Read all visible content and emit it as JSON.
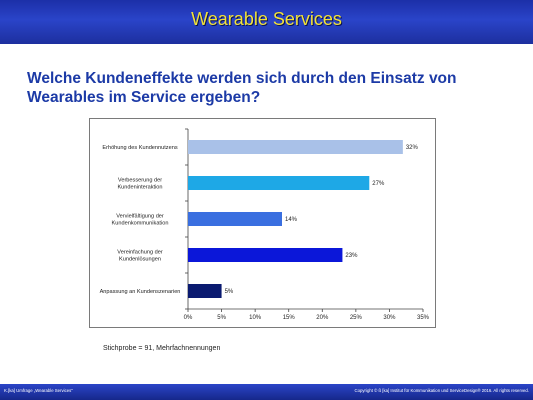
{
  "header": {
    "title": "Wearable Services"
  },
  "heading": "Welche Kundeneffekte werden sich durch den Einsatz von Wearables im Service ergeben?",
  "chart_data": {
    "type": "bar",
    "orientation": "horizontal",
    "categories": [
      [
        "Erhöhung des Kundennutzens"
      ],
      [
        "Verbesserung der",
        "Kundeninteraktion"
      ],
      [
        "Vervielfältigung der",
        "Kundenkommunikation"
      ],
      [
        "Vereinfachung der",
        "Kundenlösungen"
      ],
      [
        "Anpassung an Kundenszenarien"
      ]
    ],
    "values": [
      32,
      27,
      14,
      23,
      5
    ],
    "value_labels": [
      "32%",
      "27%",
      "14%",
      "23%",
      "5%"
    ],
    "bar_colors": [
      "#a9c1e8",
      "#1ea8e6",
      "#3a6fe0",
      "#0b17d9",
      "#0a1a70"
    ],
    "xlim": [
      0,
      35
    ],
    "xticks": [
      "0%",
      "5%",
      "10%",
      "15%",
      "20%",
      "25%",
      "30%",
      "35%"
    ],
    "xlabel": "",
    "ylabel": "",
    "grid": false
  },
  "sample_note": "Stichprobe = 91, Mehrfachnennungen",
  "footer": {
    "left": "K.[ka] Umfrage „Wearable Services\"",
    "right": "Copyright © ß [ka] Institut für Kommunikation und ServiceDesign® 2016. All rights reserved."
  }
}
